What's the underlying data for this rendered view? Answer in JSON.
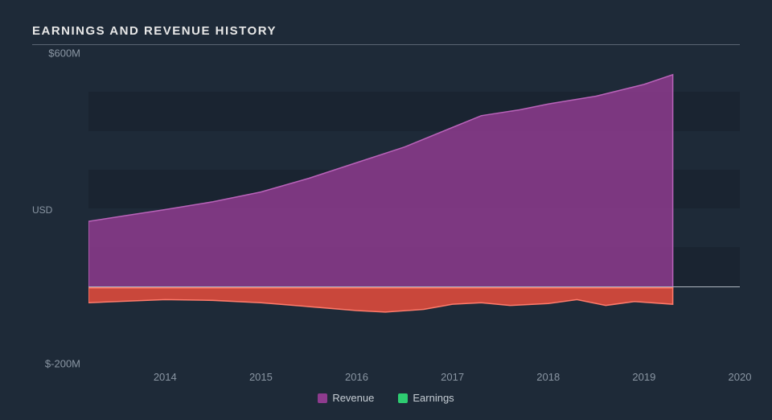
{
  "title": "EARNINGS AND REVENUE HISTORY",
  "chart": {
    "type": "area",
    "background_color": "#1e2a38",
    "gridband_color": "rgba(0,0,0,0.12)",
    "axis_text_color": "#8a96a3",
    "zero_line_color": "#aeb6bf",
    "y_axis_title": "USD",
    "ylim": [
      -200,
      600
    ],
    "y_ticks": [
      {
        "value": 600,
        "label": "$600M"
      },
      {
        "value": 200,
        "label": ""
      },
      {
        "value": -200,
        "label": "$-200M"
      }
    ],
    "gridbands": [
      {
        "from": 400,
        "to": 500
      },
      {
        "from": 200,
        "to": 300
      },
      {
        "from": 0,
        "to": 100
      }
    ],
    "xlim": [
      2013.2,
      2020
    ],
    "x_ticks": [
      2014,
      2015,
      2016,
      2017,
      2018,
      2019,
      2020
    ],
    "series": [
      {
        "name": "Revenue",
        "fill_color": "#8e3b8e",
        "fill_opacity": 0.85,
        "stroke_color": "#b963b9",
        "stroke_width": 1.5,
        "x": [
          2013.2,
          2013.6,
          2014,
          2014.5,
          2015,
          2015.5,
          2016,
          2016.5,
          2017,
          2017.3,
          2017.7,
          2018,
          2018.5,
          2019,
          2019.3
        ],
        "y": [
          170,
          185,
          200,
          220,
          245,
          280,
          320,
          360,
          410,
          440,
          455,
          470,
          490,
          520,
          545
        ]
      },
      {
        "name": "Earnings",
        "fill_color": "#e74c3c",
        "fill_opacity": 0.85,
        "stroke_color": "#ff7b6b",
        "stroke_width": 1.5,
        "x": [
          2013.2,
          2013.5,
          2014,
          2014.5,
          2015,
          2015.5,
          2016,
          2016.3,
          2016.7,
          2017,
          2017.3,
          2017.6,
          2018,
          2018.3,
          2018.6,
          2018.9,
          2019.3
        ],
        "y": [
          -38,
          -35,
          -30,
          -32,
          -38,
          -48,
          -58,
          -62,
          -55,
          -42,
          -38,
          -45,
          -40,
          -30,
          -45,
          -35,
          -42
        ]
      }
    ],
    "legend": [
      {
        "label": "Revenue",
        "color": "#8e3b8e"
      },
      {
        "label": "Earnings",
        "color": "#2ecc71"
      }
    ]
  }
}
